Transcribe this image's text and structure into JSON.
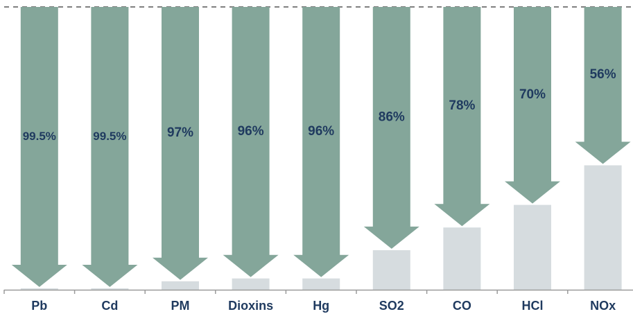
{
  "chart_data": {
    "type": "bar",
    "title": "",
    "xlabel": "",
    "ylabel": "",
    "ylim": [
      0,
      100
    ],
    "grid": false,
    "categories": [
      "Pb",
      "Cd",
      "PM",
      "Dioxins",
      "Hg",
      "SO2",
      "CO",
      "HCl",
      "NOx"
    ],
    "reduction_labels": [
      "99.5%",
      "99.5%",
      "97%",
      "96%",
      "96%",
      "86%",
      "78%",
      "70%",
      "56%"
    ],
    "reductions": [
      99.5,
      99.5,
      97,
      96,
      96,
      86,
      78,
      70,
      56
    ],
    "remaining": [
      0.5,
      0.5,
      3,
      4,
      4,
      14,
      22,
      30,
      44
    ],
    "colors": {
      "arrow": "#84a69a",
      "remaining_bar": "#d6dcdf",
      "label": "#1f3a5f",
      "axis": "#9a9a9a",
      "baseline_dashed": "#7f7f7f"
    }
  }
}
